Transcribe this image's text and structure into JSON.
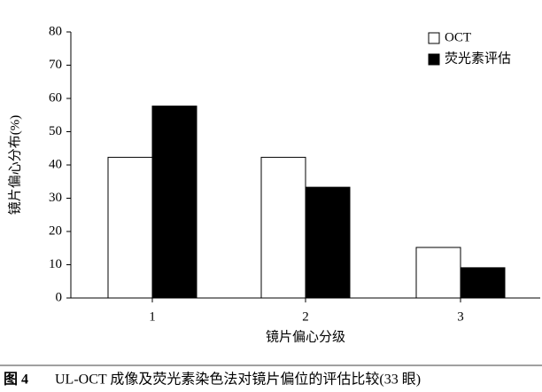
{
  "chart_data": {
    "type": "bar",
    "x_label": "镜片偏心分级",
    "y_label": "镜片偏心分布(%)",
    "categories": [
      "1",
      "2",
      "3"
    ],
    "series": [
      {
        "name": "OCT",
        "color": "#ffffff",
        "values": [
          42.3,
          42.3,
          15.2
        ]
      },
      {
        "name": "荧光素评估",
        "color": "#000000",
        "values": [
          57.7,
          33.3,
          9.1
        ]
      }
    ],
    "ylim": [
      0,
      80
    ],
    "yticks": [
      0,
      10,
      20,
      30,
      40,
      50,
      60,
      70,
      80
    ],
    "legend": "upper right",
    "caption_label": "图 4",
    "caption": "UL-OCT 成像及荧光素染色法对镜片偏位的评估比较(33 眼)"
  }
}
